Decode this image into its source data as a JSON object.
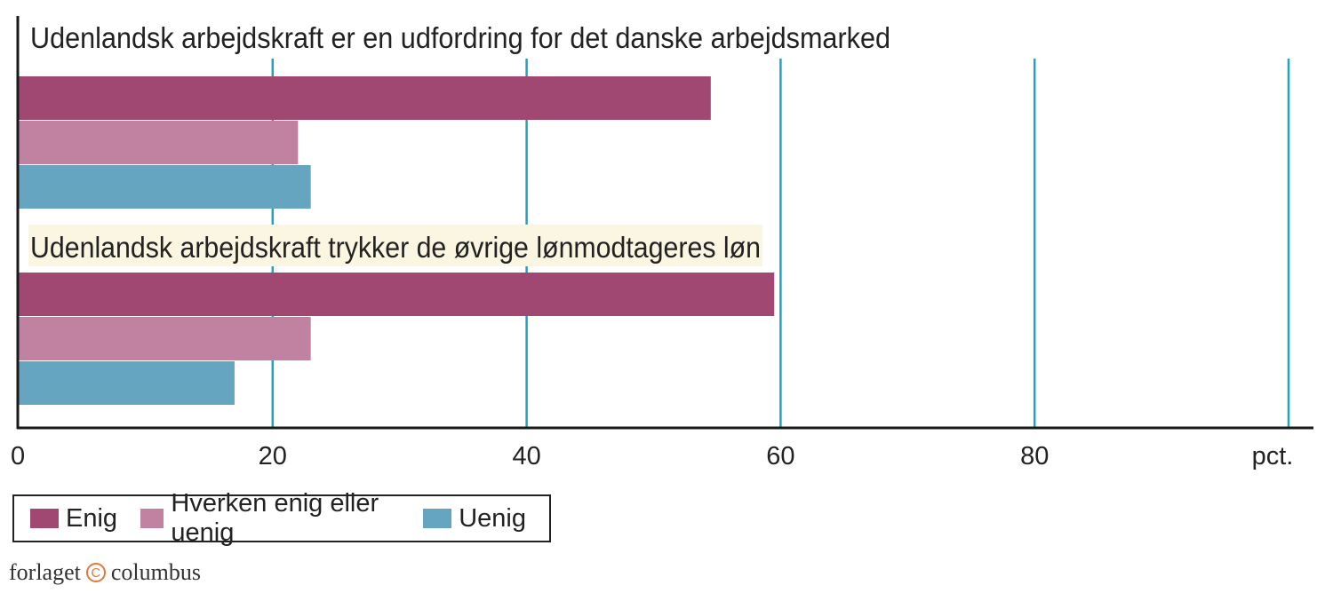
{
  "chart_data": {
    "type": "bar",
    "orientation": "horizontal",
    "categories": [
      "Udenlandsk arbejdskraft er en udfordring for det danske arbejdsmarked",
      "Udenlandsk arbejdskraft trykker de øvrige lønmodtageres løn"
    ],
    "series": [
      {
        "name": "Enig",
        "color": "#a04872",
        "values": [
          54.5,
          59.5
        ]
      },
      {
        "name": "Hverken enig eller uenig",
        "color": "#c082a0",
        "values": [
          22,
          23
        ]
      },
      {
        "name": "Uenig",
        "color": "#65a5bf",
        "values": [
          23,
          17
        ]
      }
    ],
    "xlim": [
      0,
      100
    ],
    "xticks": [
      0,
      20,
      40,
      60,
      80
    ],
    "xticklabels": [
      "0",
      "20",
      "40",
      "60",
      "80"
    ],
    "gridlines": [
      20,
      40,
      60,
      80,
      100
    ],
    "xlabel": "pct.",
    "grid_color": "#1ca3c9",
    "highlight_color": "#faf6e2",
    "legend": "bottom-left"
  },
  "legend": {
    "items": [
      {
        "label": "Enig",
        "color": "#a04872"
      },
      {
        "label": "Hverken enig eller uenig",
        "color": "#c082a0"
      },
      {
        "label": "Uenig",
        "color": "#65a5bf"
      }
    ]
  },
  "publisher": {
    "left": "forlaget",
    "right": "columbus"
  }
}
